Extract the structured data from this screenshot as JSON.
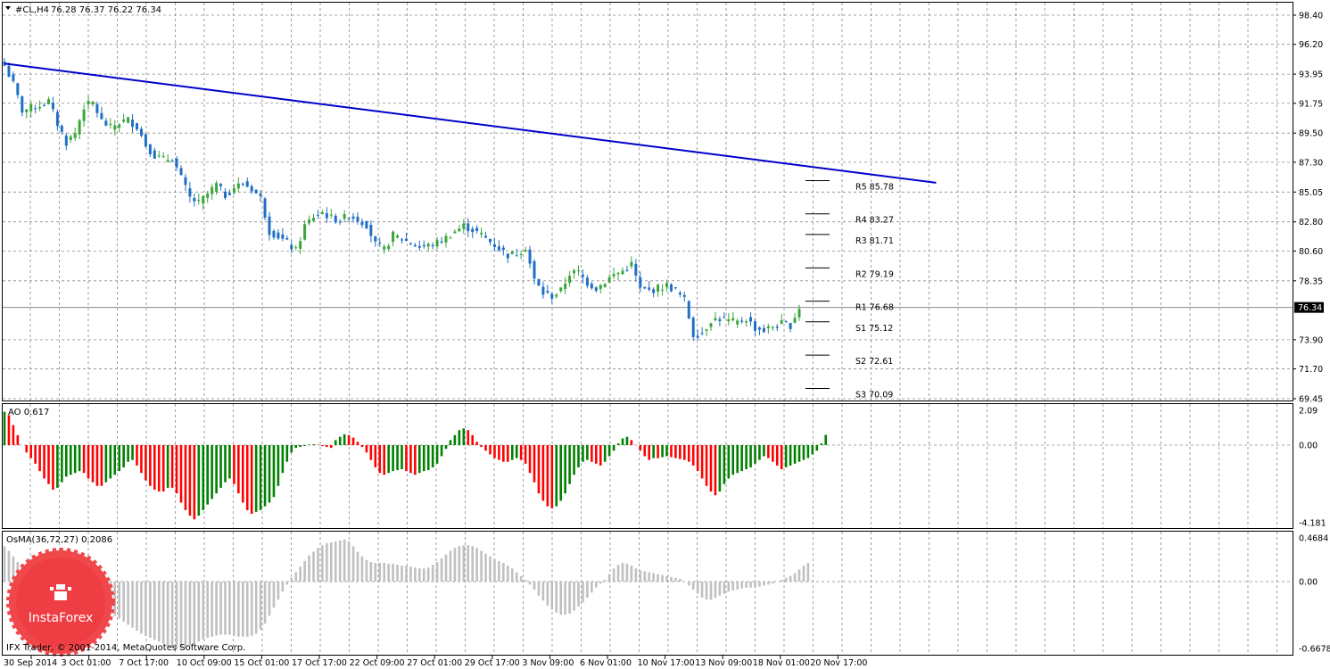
{
  "symbol_label": "#CL,H4",
  "ohlc_label": "76.28 76.37 76.22 76.34",
  "ao_label": "AO 0.617",
  "osma_label": "OsMA(36,72,27) 0.2086",
  "copyright": "IFX Trader, © 2001-2014, MetaQuotes Software Corp.",
  "watermark": "InstaForex",
  "colors": {
    "up": "#3aa63a",
    "down": "#1f6fc5",
    "trendline": "#0000cc",
    "ao_up": "#008000",
    "ao_down": "#ff0000",
    "osma": "#c0c0c0"
  },
  "chart_data": [
    {
      "type": "candlestick",
      "name": "#CL,H4",
      "y_ticks": [
        "98.40",
        "96.20",
        "93.95",
        "91.75",
        "89.50",
        "87.30",
        "85.05",
        "82.80",
        "80.60",
        "78.35",
        "76.34",
        "73.90",
        "71.70",
        "69.45"
      ],
      "ylim": [
        69.2,
        99.0
      ],
      "x_ticks": [
        "30 Sep 2014",
        "3 Oct 01:00",
        "7 Oct 17:00",
        "10 Oct 09:00",
        "15 Oct 01:00",
        "17 Oct 17:00",
        "22 Oct 09:00",
        "27 Oct 01:00",
        "29 Oct 17:00",
        "3 Nov 09:00",
        "6 Nov 01:00",
        "10 Nov 17:00",
        "13 Nov 09:00",
        "18 Nov 01:00",
        "20 Nov 17:00"
      ],
      "current_price": "76.34",
      "close_path": [
        [
          0,
          94.6
        ],
        [
          2,
          93.2
        ],
        [
          4,
          91.2
        ],
        [
          6,
          91.4
        ],
        [
          8,
          91.6
        ],
        [
          10,
          91.9
        ],
        [
          12,
          90.2
        ],
        [
          14,
          88.8
        ],
        [
          16,
          89.5
        ],
        [
          18,
          91.5
        ],
        [
          20,
          91.8
        ],
        [
          22,
          90.4
        ],
        [
          24,
          89.9
        ],
        [
          26,
          90.3
        ],
        [
          28,
          90.5
        ],
        [
          30,
          90.0
        ],
        [
          32,
          88.6
        ],
        [
          34,
          87.8
        ],
        [
          36,
          87.5
        ],
        [
          38,
          87.6
        ],
        [
          40,
          86.1
        ],
        [
          42,
          84.6
        ],
        [
          44,
          84.2
        ],
        [
          46,
          84.9
        ],
        [
          48,
          85.6
        ],
        [
          50,
          84.8
        ],
        [
          52,
          85.4
        ],
        [
          54,
          85.7
        ],
        [
          56,
          85.3
        ],
        [
          58,
          84.6
        ],
        [
          60,
          82.1
        ],
        [
          62,
          81.7
        ],
        [
          64,
          81.2
        ],
        [
          66,
          80.6
        ],
        [
          68,
          82.5
        ],
        [
          70,
          83.2
        ],
        [
          72,
          83.5
        ],
        [
          74,
          83.1
        ],
        [
          76,
          82.9
        ],
        [
          78,
          83.3
        ],
        [
          80,
          83.0
        ],
        [
          82,
          82.6
        ],
        [
          84,
          81.1
        ],
        [
          86,
          80.7
        ],
        [
          88,
          81.8
        ],
        [
          90,
          81.5
        ],
        [
          92,
          81.2
        ],
        [
          94,
          80.9
        ],
        [
          96,
          81.0
        ],
        [
          98,
          81.2
        ],
        [
          100,
          81.6
        ],
        [
          102,
          82.1
        ],
        [
          104,
          82.5
        ],
        [
          106,
          82.2
        ],
        [
          108,
          81.8
        ],
        [
          110,
          81.3
        ],
        [
          112,
          80.8
        ],
        [
          114,
          80.3
        ],
        [
          116,
          80.4
        ],
        [
          118,
          80.9
        ],
        [
          120,
          78.4
        ],
        [
          122,
          77.4
        ],
        [
          124,
          77.2
        ],
        [
          126,
          77.6
        ],
        [
          128,
          78.9
        ],
        [
          130,
          79.0
        ],
        [
          132,
          78.2
        ],
        [
          134,
          77.8
        ],
        [
          136,
          78.3
        ],
        [
          138,
          78.8
        ],
        [
          140,
          79.1
        ],
        [
          142,
          79.6
        ],
        [
          144,
          77.7
        ],
        [
          146,
          77.6
        ],
        [
          148,
          77.8
        ],
        [
          150,
          78.0
        ],
        [
          152,
          77.6
        ],
        [
          154,
          76.9
        ],
        [
          156,
          74.3
        ],
        [
          158,
          74.4
        ],
        [
          160,
          75.4
        ],
        [
          162,
          75.5
        ],
        [
          164,
          75.3
        ],
        [
          166,
          75.2
        ],
        [
          168,
          75.5
        ],
        [
          170,
          74.8
        ],
        [
          172,
          74.6
        ],
        [
          174,
          74.9
        ],
        [
          176,
          75.1
        ],
        [
          178,
          75.0
        ],
        [
          180,
          76.34
        ]
      ],
      "trendline": {
        "start": [
          0,
          94.75
        ],
        "end": [
          211,
          85.75
        ]
      },
      "pivots": [
        {
          "label": "R5 85.78",
          "value": 85.78
        },
        {
          "label": "R4 83.27",
          "value": 83.27
        },
        {
          "label": "R3 81.71",
          "value": 81.71
        },
        {
          "label": "R2 79.19",
          "value": 79.19
        },
        {
          "label": "R1 76.68",
          "value": 76.68
        },
        {
          "label": "S1 75.12",
          "value": 75.12
        },
        {
          "label": "S2 72.61",
          "value": 72.61
        },
        {
          "label": "S3 70.09",
          "value": 70.09
        }
      ]
    },
    {
      "type": "bar",
      "name": "AO",
      "y_ticks": [
        "2.09",
        "0.00",
        "-4.181"
      ],
      "ylim": [
        -4.181,
        2.09
      ],
      "values": [
        2.0,
        1.8,
        1.2,
        0.6,
        0.0,
        -0.4,
        -0.7,
        -1.0,
        -1.4,
        -1.8,
        -2.1,
        -2.4,
        -2.3,
        -2.0,
        -1.7,
        -1.6,
        -1.5,
        -1.4,
        -1.5,
        -1.8,
        -2.0,
        -2.2,
        -2.2,
        -2.0,
        -1.8,
        -1.6,
        -1.4,
        -1.2,
        -0.9,
        -0.8,
        -1.1,
        -1.5,
        -1.9,
        -2.2,
        -2.4,
        -2.5,
        -2.5,
        -2.3,
        -2.3,
        -2.6,
        -3.1,
        -3.5,
        -3.8,
        -4.0,
        -3.8,
        -3.5,
        -3.2,
        -2.9,
        -2.6,
        -2.3,
        -2.0,
        -1.8,
        -2.1,
        -2.6,
        -3.1,
        -3.5,
        -3.7,
        -3.6,
        -3.5,
        -3.3,
        -3.1,
        -2.8,
        -2.2,
        -1.5,
        -0.9,
        -0.4,
        -0.15,
        -0.1,
        -0.05,
        0.03,
        0.05,
        0.02,
        -0.05,
        -0.1,
        -0.15,
        0.3,
        0.5,
        0.65,
        0.6,
        0.45,
        0.2,
        -0.1,
        -0.4,
        -0.8,
        -1.2,
        -1.5,
        -1.6,
        -1.5,
        -1.4,
        -1.35,
        -1.3,
        -1.4,
        -1.5,
        -1.6,
        -1.5,
        -1.4,
        -1.35,
        -1.2,
        -1.0,
        -0.6,
        -0.2,
        0.3,
        0.6,
        0.9,
        1.0,
        0.9,
        0.6,
        0.2,
        -0.1,
        -0.3,
        -0.5,
        -0.7,
        -0.8,
        -0.9,
        -0.9,
        -0.8,
        -0.7,
        -0.8,
        -1.0,
        -1.5,
        -2.0,
        -2.6,
        -3.0,
        -3.3,
        -3.4,
        -3.3,
        -3.0,
        -2.6,
        -2.1,
        -1.6,
        -1.2,
        -0.9,
        -0.8,
        -0.9,
        -1.0,
        -1.1,
        -0.9,
        -0.6,
        -0.3,
        0.1,
        0.4,
        0.5,
        0.3,
        0.0,
        -0.3,
        -0.6,
        -0.8,
        -0.7,
        -0.7,
        -0.65,
        -0.6,
        -0.65,
        -0.7,
        -0.75,
        -0.8,
        -0.9,
        -1.1,
        -1.4,
        -1.8,
        -2.2,
        -2.5,
        -2.7,
        -2.5,
        -2.1,
        -1.8,
        -1.6,
        -1.5,
        -1.4,
        -1.3,
        -1.2,
        -1.0,
        -0.8,
        -0.6,
        -0.7,
        -0.9,
        -1.1,
        -1.3,
        -1.2,
        -1.1,
        -1.0,
        -0.9,
        -0.8,
        -0.7,
        -0.5,
        -0.3,
        0.1,
        0.617
      ]
    },
    {
      "type": "bar",
      "name": "OsMA(36,72,27)",
      "y_ticks": [
        "0.4684",
        "0.00",
        "-0.6678"
      ],
      "ylim": [
        -0.6678,
        0.4684
      ],
      "values": [
        0.38,
        0.33,
        0.27,
        0.21,
        0.15,
        0.1,
        0.05,
        0.01,
        -0.03,
        -0.07,
        -0.1,
        -0.13,
        -0.15,
        -0.17,
        -0.18,
        -0.19,
        -0.2,
        -0.21,
        -0.22,
        -0.23,
        -0.24,
        -0.25,
        -0.27,
        -0.29,
        -0.31,
        -0.34,
        -0.37,
        -0.4,
        -0.43,
        -0.46,
        -0.49,
        -0.52,
        -0.54,
        -0.56,
        -0.58,
        -0.6,
        -0.62,
        -0.64,
        -0.66,
        -0.67,
        -0.67,
        -0.66,
        -0.64,
        -0.62,
        -0.6,
        -0.58,
        -0.56,
        -0.55,
        -0.54,
        -0.53,
        -0.53,
        -0.53,
        -0.54,
        -0.55,
        -0.55,
        -0.55,
        -0.54,
        -0.52,
        -0.48,
        -0.42,
        -0.34,
        -0.26,
        -0.18,
        -0.1,
        -0.03,
        0.04,
        0.1,
        0.16,
        0.22,
        0.28,
        0.32,
        0.36,
        0.39,
        0.41,
        0.42,
        0.43,
        0.44,
        0.45,
        0.43,
        0.38,
        0.32,
        0.27,
        0.23,
        0.21,
        0.2,
        0.2,
        0.2,
        0.19,
        0.19,
        0.18,
        0.17,
        0.17,
        0.16,
        0.15,
        0.14,
        0.14,
        0.15,
        0.18,
        0.21,
        0.25,
        0.29,
        0.33,
        0.36,
        0.38,
        0.39,
        0.39,
        0.38,
        0.36,
        0.33,
        0.3,
        0.27,
        0.24,
        0.22,
        0.2,
        0.17,
        0.14,
        0.1,
        0.06,
        0.02,
        -0.03,
        -0.08,
        -0.14,
        -0.19,
        -0.24,
        -0.28,
        -0.31,
        -0.33,
        -0.33,
        -0.32,
        -0.29,
        -0.25,
        -0.21,
        -0.16,
        -0.11,
        -0.06,
        -0.02,
        0.02,
        0.08,
        0.14,
        0.18,
        0.2,
        0.19,
        0.17,
        0.14,
        0.12,
        0.11,
        0.1,
        0.09,
        0.08,
        0.07,
        0.06,
        0.05,
        0.04,
        0.03,
        0.0,
        -0.04,
        -0.08,
        -0.12,
        -0.16,
        -0.18,
        -0.18,
        -0.16,
        -0.14,
        -0.12,
        -0.1,
        -0.09,
        -0.08,
        -0.07,
        -0.06,
        -0.06,
        -0.06,
        -0.05,
        -0.04,
        -0.03,
        -0.02,
        0.0,
        0.02,
        0.04,
        0.06,
        0.09,
        0.13,
        0.17,
        0.2
      ]
    }
  ]
}
